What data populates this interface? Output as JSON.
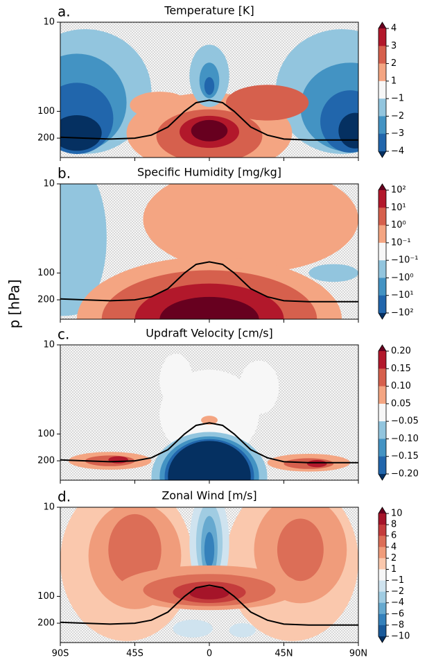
{
  "ylabel": "p [hPa]",
  "line": {
    "color": "#000000",
    "x": [
      -90,
      -75,
      -60,
      -45,
      -35,
      -25,
      -15,
      -8,
      0,
      8,
      15,
      25,
      35,
      45,
      60,
      75,
      90
    ],
    "y": [
      195,
      200,
      205,
      200,
      185,
      150,
      100,
      80,
      75,
      80,
      100,
      150,
      185,
      205,
      210,
      210,
      210
    ]
  },
  "chart_data": [
    {
      "type": "contour",
      "panel_label": "a.",
      "title": "Temperature [K]",
      "xlim": [
        -90,
        90
      ],
      "xticks": [
        -90,
        -45,
        0,
        45,
        90
      ],
      "ylim": [
        330,
        10
      ],
      "yticks": [
        10,
        100,
        200
      ],
      "log_scale": true,
      "colorbar": {
        "ticks": [
          4,
          3,
          2,
          1,
          {
            "value": -1,
            "label": "−1"
          },
          {
            "value": -2,
            "label": "−2"
          },
          {
            "value": -3,
            "label": "−3"
          },
          {
            "value": -4,
            "label": "−4"
          }
        ],
        "colors": [
          "#67001f",
          "#b2182b",
          "#d6604d",
          "#f4a582",
          "#f7f7f7",
          "#92c5de",
          "#4393c3",
          "#2166ac",
          "#053061"
        ]
      }
    },
    {
      "type": "contour",
      "panel_label": "b.",
      "title": "Specific Humidity [mg/kg]",
      "xlim": [
        -90,
        90
      ],
      "xticks": [
        -90,
        -45,
        0,
        45,
        90
      ],
      "ylim": [
        330,
        10
      ],
      "yticks": [
        10,
        100,
        200
      ],
      "log_scale": true,
      "colorbar": {
        "ticks": [
          {
            "value": 100,
            "label": "10²"
          },
          {
            "value": 10,
            "label": "10¹"
          },
          {
            "value": 1,
            "label": "10⁰"
          },
          {
            "value": 0.1,
            "label": "10⁻¹"
          },
          {
            "value": -0.1,
            "label": "−10⁻¹"
          },
          {
            "value": -1,
            "label": "−10⁰"
          },
          {
            "value": -10,
            "label": "−10¹"
          },
          {
            "value": -100,
            "label": "−10²"
          }
        ],
        "colors": [
          "#67001f",
          "#b2182b",
          "#d6604d",
          "#f4a582",
          "#f7f7f7",
          "#92c5de",
          "#4393c3",
          "#2166ac",
          "#053061"
        ]
      }
    },
    {
      "type": "contour",
      "panel_label": "c.",
      "title": "Updraft Velocity [cm/s]",
      "xlim": [
        -90,
        90
      ],
      "xticks": [
        -90,
        -45,
        0,
        45,
        90
      ],
      "ylim": [
        330,
        10
      ],
      "yticks": [
        10,
        100,
        200
      ],
      "log_scale": true,
      "colorbar": {
        "ticks": [
          {
            "value": 0.2,
            "label": "0.20"
          },
          0.15,
          {
            "value": 0.1,
            "label": "0.10"
          },
          0.05,
          {
            "value": -0.05,
            "label": "−0.05"
          },
          {
            "value": -0.1,
            "label": "−0.10"
          },
          {
            "value": -0.15,
            "label": "−0.15"
          },
          {
            "value": -0.2,
            "label": "−0.20"
          }
        ],
        "colors": [
          "#67001f",
          "#b2182b",
          "#d6604d",
          "#f4a582",
          "#f7f7f7",
          "#92c5de",
          "#4393c3",
          "#2166ac",
          "#053061"
        ]
      }
    },
    {
      "type": "contour",
      "panel_label": "d.",
      "title": "Zonal Wind [m/s]",
      "xlim": [
        -90,
        90
      ],
      "xticks": [
        {
          "value": -90,
          "label": "90S"
        },
        {
          "value": -45,
          "label": "45S"
        },
        0,
        {
          "value": 45,
          "label": "45N"
        },
        {
          "value": 90,
          "label": "90N"
        }
      ],
      "ylim": [
        330,
        10
      ],
      "yticks": [
        10,
        100,
        200
      ],
      "log_scale": true,
      "colorbar": {
        "ticks": [
          10,
          8,
          6,
          4,
          2,
          1,
          {
            "value": -1,
            "label": "−1"
          },
          {
            "value": -2,
            "label": "−2"
          },
          {
            "value": -4,
            "label": "−4"
          },
          {
            "value": -6,
            "label": "−6"
          },
          {
            "value": -8,
            "label": "−8"
          },
          {
            "value": -10,
            "label": "−10"
          }
        ],
        "colors": [
          "#67001f",
          "#a51429",
          "#c43c3c",
          "#dc6e57",
          "#f09c7b",
          "#fac8ad",
          "#f7f7f7",
          "#cfe3ef",
          "#a0cce2",
          "#66a9cf",
          "#3581bb",
          "#1a5a9a",
          "#053061"
        ]
      }
    }
  ]
}
